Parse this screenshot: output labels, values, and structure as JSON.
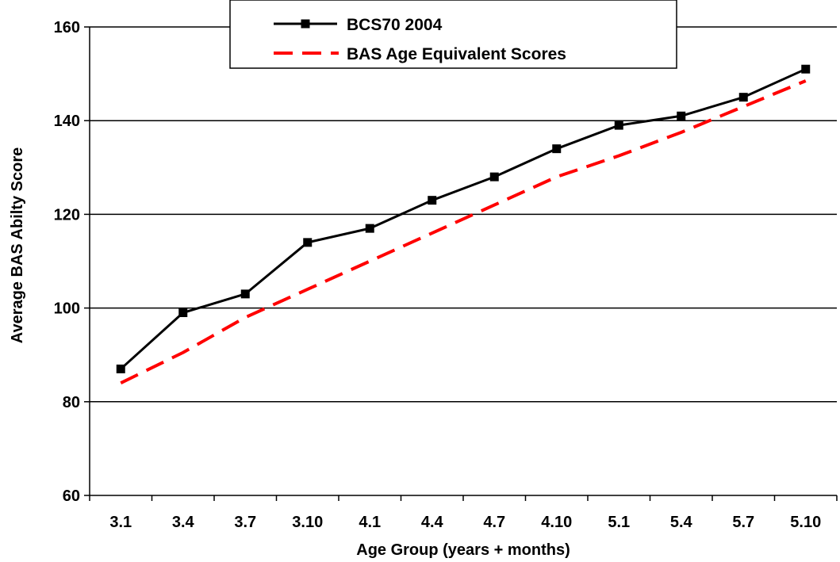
{
  "chart_data": {
    "type": "line",
    "title": "",
    "xlabel": "Age Group (years + months)",
    "ylabel": "Average BAS Abilty Score",
    "categories": [
      "3.1",
      "3.4",
      "3.7",
      "3.10",
      "4.1",
      "4.4",
      "4.7",
      "4.10",
      "5.1",
      "5.4",
      "5.7",
      "5.10"
    ],
    "ylim": [
      60,
      160
    ],
    "yticks": [
      60,
      80,
      100,
      120,
      140,
      160
    ],
    "grid": true,
    "legend_position": "top-center",
    "series": [
      {
        "name": "BCS70 2004",
        "style": "solid",
        "marker": "square",
        "color": "#000000",
        "values": [
          87,
          99,
          103,
          114,
          117,
          123,
          128,
          134,
          139,
          141,
          145,
          151
        ]
      },
      {
        "name": "BAS Age Equivalent Scores",
        "style": "dashed",
        "marker": "none",
        "color": "#ff0000",
        "values": [
          84,
          90.5,
          98,
          104,
          110,
          116,
          122,
          128,
          132.5,
          137.5,
          143,
          148.5
        ]
      }
    ]
  }
}
